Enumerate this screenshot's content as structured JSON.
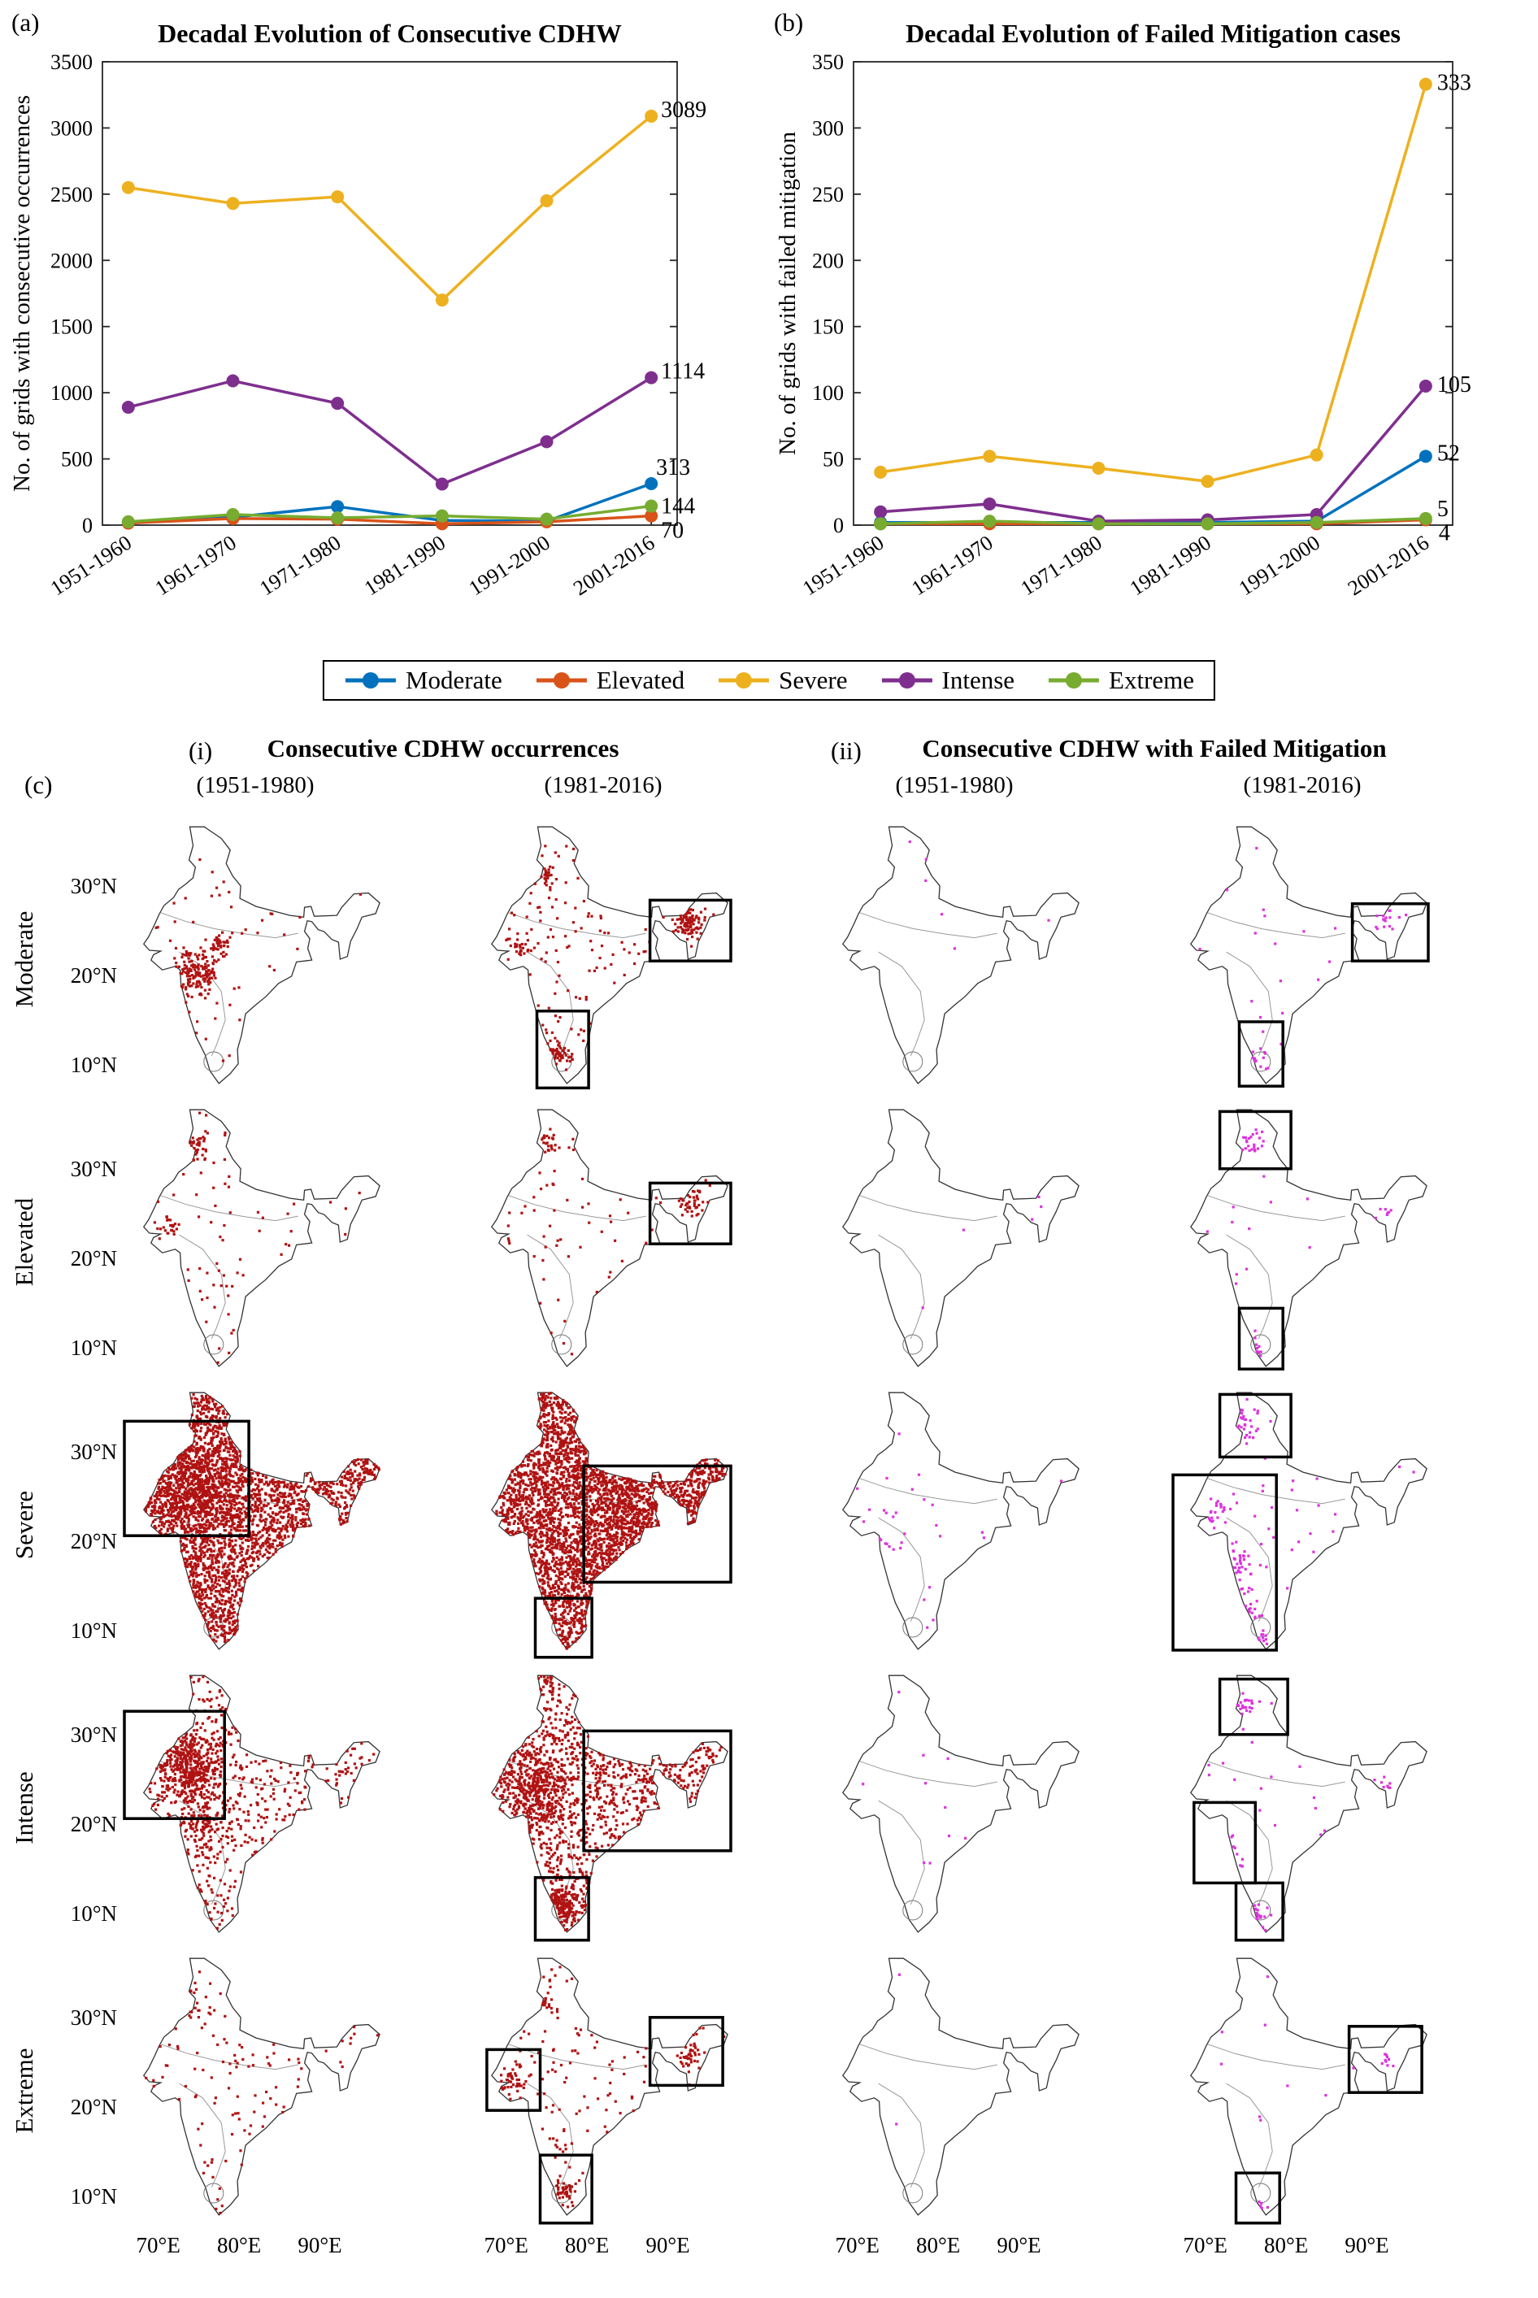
{
  "chart_data": [
    {
      "panel_label": "(a)",
      "type": "line",
      "title": "Decadal Evolution of  Consecutive CDHW",
      "ylabel": "No. of grids with consecutive occurrences",
      "categories": [
        "1951-1960",
        "1961-1970",
        "1971-1980",
        "1981-1990",
        "1991-2000",
        "2001-2016"
      ],
      "ylim": [
        0,
        3500
      ],
      "yticks": [
        0,
        500,
        1000,
        1500,
        2000,
        2500,
        3000,
        3500
      ],
      "legend_position": "below",
      "grid": false,
      "series": [
        {
          "name": "Moderate",
          "color": "#0072BD",
          "values": [
            20,
            60,
            140,
            35,
            30,
            313
          ],
          "end_label": "313",
          "label_dx": 6,
          "label_dy": -20
        },
        {
          "name": "Elevated",
          "color": "#D95319",
          "values": [
            15,
            50,
            45,
            10,
            25,
            70
          ],
          "end_label": "70",
          "label_dx": 12,
          "label_dy": 18
        },
        {
          "name": "Severe",
          "color": "#EDB120",
          "values": [
            2550,
            2430,
            2480,
            1700,
            2450,
            3089
          ],
          "end_label": "3089",
          "label_dx": 12,
          "label_dy": -8
        },
        {
          "name": "Intense",
          "color": "#7E2F8E",
          "values": [
            890,
            1090,
            920,
            310,
            630,
            1114
          ],
          "end_label": "1114",
          "label_dx": 12,
          "label_dy": -8
        },
        {
          "name": "Extreme",
          "color": "#77AC30",
          "values": [
            25,
            80,
            55,
            70,
            45,
            144
          ],
          "end_label": "144",
          "label_dx": 12,
          "label_dy": 0
        }
      ]
    },
    {
      "panel_label": "(b)",
      "type": "line",
      "title": "Decadal Evolution of Failed Mitigation cases",
      "ylabel": "No. of grids with failed mitigation",
      "categories": [
        "1951-1960",
        "1961-1970",
        "1971-1980",
        "1981-1990",
        "1991-2000",
        "2001-2016"
      ],
      "ylim": [
        0,
        350
      ],
      "yticks": [
        0,
        50,
        100,
        150,
        200,
        250,
        300,
        350
      ],
      "legend_position": "below",
      "grid": false,
      "series": [
        {
          "name": "Moderate",
          "color": "#0072BD",
          "values": [
            2,
            2,
            2,
            2,
            3,
            52
          ],
          "end_label": "52",
          "label_dx": 14,
          "label_dy": -4
        },
        {
          "name": "Elevated",
          "color": "#D95319",
          "values": [
            1,
            1,
            1,
            1,
            1,
            4
          ],
          "end_label": "4",
          "label_dx": 16,
          "label_dy": 16
        },
        {
          "name": "Severe",
          "color": "#EDB120",
          "values": [
            40,
            52,
            43,
            33,
            53,
            333
          ],
          "end_label": "333",
          "label_dx": 14,
          "label_dy": -2
        },
        {
          "name": "Intense",
          "color": "#7E2F8E",
          "values": [
            10,
            16,
            3,
            4,
            8,
            105
          ],
          "end_label": "105",
          "label_dx": 14,
          "label_dy": -2
        },
        {
          "name": "Extreme",
          "color": "#77AC30",
          "values": [
            1,
            3,
            1,
            1,
            2,
            5
          ],
          "end_label": "5",
          "label_dx": 14,
          "label_dy": -12
        }
      ]
    }
  ],
  "legend": {
    "items": [
      {
        "label": "Moderate",
        "color": "#0072BD"
      },
      {
        "label": "Elevated",
        "color": "#D95319"
      },
      {
        "label": "Severe",
        "color": "#EDB120"
      },
      {
        "label": "Intense",
        "color": "#7E2F8E"
      },
      {
        "label": "Extreme",
        "color": "#77AC30"
      }
    ]
  },
  "maps": {
    "section_label": "(c)",
    "group1_label": "(i)",
    "group1_title": "Consecutive CDHW occurrences",
    "group2_label": "(ii)",
    "group2_title": "Consecutive CDHW with Failed Mitigation",
    "col_headers": [
      "(1951-1980)",
      "(1981-2016)",
      "(1951-1980)",
      "(1981-2016)"
    ],
    "row_labels": [
      "Moderate",
      "Elevated",
      "Severe",
      "Intense",
      "Extreme"
    ],
    "lat_ticks": [
      "30°N",
      "20°N",
      "10°N"
    ],
    "lon_ticks": [
      "70°E",
      "80°E",
      "90°E"
    ],
    "dot_colors": {
      "occurrence": "#b01212",
      "failed": "#dd33dd"
    },
    "cells": [
      {
        "row": 0,
        "col": 0,
        "type": "occurrence",
        "scatter": 50,
        "clusters": [
          [
            74.5,
            20.5,
            3.2,
            160
          ],
          [
            77.5,
            23.5,
            2.0,
            40
          ]
        ],
        "rects": []
      },
      {
        "row": 0,
        "col": 1,
        "type": "occurrence",
        "scatter": 120,
        "clusters": [
          [
            92.5,
            26.3,
            2.2,
            110
          ],
          [
            76.5,
            11.5,
            2.0,
            50
          ],
          [
            74.5,
            31.5,
            1.8,
            40
          ],
          [
            71.5,
            23.5,
            1.5,
            25
          ]
        ],
        "rects": [
          [
            87.8,
            21.8,
            97.8,
            28.6
          ],
          [
            73.8,
            7.6,
            80.2,
            16.2
          ]
        ]
      },
      {
        "row": 0,
        "col": 2,
        "type": "failed",
        "scatter": 6,
        "clusters": [],
        "rects": []
      },
      {
        "row": 0,
        "col": 3,
        "type": "failed",
        "scatter": 18,
        "clusters": [
          [
            92.5,
            26.3,
            1.8,
            18
          ],
          [
            76.5,
            11.0,
            1.5,
            12
          ]
        ],
        "rects": [
          [
            88.2,
            21.8,
            97.6,
            28.2
          ],
          [
            74.2,
            7.8,
            79.6,
            15.0
          ]
        ]
      },
      {
        "row": 1,
        "col": 0,
        "type": "occurrence",
        "scatter": 70,
        "clusters": [
          [
            74.5,
            32.5,
            1.8,
            50
          ],
          [
            71.5,
            24.0,
            1.5,
            20
          ]
        ],
        "rects": []
      },
      {
        "row": 1,
        "col": 1,
        "type": "occurrence",
        "scatter": 60,
        "clusters": [
          [
            93.0,
            26.5,
            1.8,
            45
          ],
          [
            75.0,
            33.0,
            1.5,
            25
          ]
        ],
        "rects": [
          [
            87.8,
            21.8,
            97.8,
            28.6
          ]
        ]
      },
      {
        "row": 1,
        "col": 2,
        "type": "failed",
        "scatter": 5,
        "clusters": [],
        "rects": []
      },
      {
        "row": 1,
        "col": 3,
        "type": "failed",
        "scatter": 14,
        "clusters": [
          [
            75.5,
            33.5,
            1.8,
            22
          ],
          [
            76.5,
            10.5,
            1.3,
            10
          ],
          [
            92.0,
            25.5,
            1.3,
            7
          ]
        ],
        "rects": [
          [
            71.8,
            30.2,
            80.6,
            36.6
          ],
          [
            74.2,
            7.8,
            79.6,
            14.6
          ]
        ]
      },
      {
        "row": 2,
        "col": 0,
        "type": "occurrence",
        "scatter": 2400,
        "clusters": [
          [
            75.0,
            26.0,
            6.0,
            500
          ]
        ],
        "rects": [
          [
            65.8,
            20.8,
            81.2,
            33.6
          ]
        ]
      },
      {
        "row": 2,
        "col": 1,
        "type": "occurrence",
        "scatter": 2800,
        "clusters": [
          [
            84.0,
            24.0,
            7.0,
            300
          ]
        ],
        "rects": [
          [
            79.6,
            15.6,
            97.8,
            28.6
          ],
          [
            73.6,
            7.2,
            80.6,
            13.8
          ]
        ]
      },
      {
        "row": 2,
        "col": 2,
        "type": "failed",
        "scatter": 22,
        "clusters": [
          [
            73.0,
            20.0,
            4.0,
            12
          ]
        ],
        "rects": []
      },
      {
        "row": 2,
        "col": 3,
        "type": "failed",
        "scatter": 35,
        "clusters": [
          [
            73.5,
            17.5,
            2.8,
            55
          ],
          [
            74.8,
            13.0,
            2.2,
            35
          ],
          [
            74.5,
            33.0,
            2.2,
            45
          ],
          [
            77.0,
            9.5,
            1.4,
            15
          ],
          [
            71.5,
            23.5,
            2.0,
            20
          ]
        ],
        "rects": [
          [
            71.8,
            29.6,
            80.6,
            36.6
          ],
          [
            66.0,
            8.0,
            78.8,
            27.6
          ]
        ]
      },
      {
        "row": 3,
        "col": 0,
        "type": "occurrence",
        "scatter": 420,
        "clusters": [
          [
            74.0,
            26.5,
            4.5,
            450
          ],
          [
            76.0,
            20.0,
            4.0,
            120
          ]
        ],
        "rects": [
          [
            65.8,
            20.8,
            78.2,
            32.8
          ]
        ]
      },
      {
        "row": 3,
        "col": 1,
        "type": "occurrence",
        "scatter": 1000,
        "clusters": [
          [
            76.8,
            11.0,
            2.4,
            150
          ],
          [
            74.0,
            24.0,
            5.0,
            350
          ]
        ],
        "rects": [
          [
            79.6,
            17.2,
            97.8,
            30.6
          ],
          [
            73.6,
            7.2,
            80.2,
            14.2
          ]
        ]
      },
      {
        "row": 3,
        "col": 2,
        "type": "failed",
        "scatter": 10,
        "clusters": [],
        "rects": []
      },
      {
        "row": 3,
        "col": 3,
        "type": "failed",
        "scatter": 22,
        "clusters": [
          [
            74.5,
            33.5,
            1.8,
            35
          ],
          [
            73.0,
            17.0,
            2.2,
            30
          ],
          [
            76.5,
            10.0,
            1.8,
            28
          ],
          [
            92.0,
            24.5,
            1.3,
            8
          ]
        ],
        "rects": [
          [
            71.8,
            30.2,
            80.2,
            36.4
          ],
          [
            68.6,
            13.6,
            76.2,
            22.6
          ],
          [
            73.8,
            7.2,
            79.6,
            13.6
          ]
        ]
      },
      {
        "row": 4,
        "col": 0,
        "type": "occurrence",
        "scatter": 110,
        "clusters": [
          [
            74.0,
            31.5,
            1.8,
            35
          ]
        ],
        "rects": []
      },
      {
        "row": 4,
        "col": 1,
        "type": "occurrence",
        "scatter": 130,
        "clusters": [
          [
            70.8,
            23.3,
            1.8,
            35
          ],
          [
            92.5,
            26.0,
            1.8,
            35
          ],
          [
            77.0,
            10.5,
            1.8,
            45
          ],
          [
            74.5,
            32.0,
            1.4,
            25
          ]
        ],
        "rects": [
          [
            67.6,
            19.8,
            74.2,
            26.6
          ],
          [
            87.8,
            22.6,
            96.8,
            30.2
          ],
          [
            74.2,
            7.2,
            80.6,
            14.8
          ]
        ]
      },
      {
        "row": 4,
        "col": 2,
        "type": "failed",
        "scatter": 2,
        "clusters": [],
        "rects": []
      },
      {
        "row": 4,
        "col": 3,
        "type": "failed",
        "scatter": 9,
        "clusters": [
          [
            92.5,
            25.5,
            1.4,
            9
          ],
          [
            77.0,
            9.5,
            1.0,
            7
          ]
        ],
        "rects": [
          [
            87.8,
            21.8,
            96.8,
            29.2
          ],
          [
            73.8,
            7.2,
            79.2,
            12.8
          ]
        ]
      }
    ]
  }
}
